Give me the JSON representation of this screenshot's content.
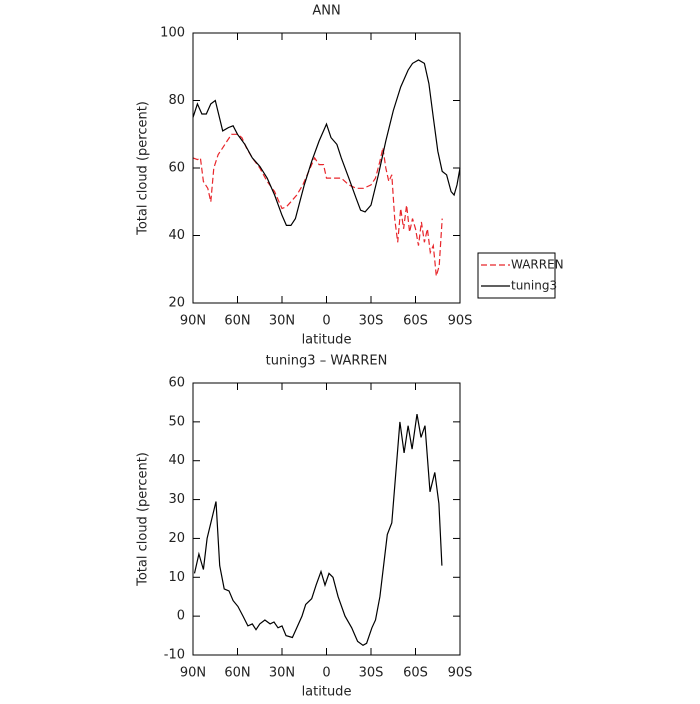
{
  "chart_data": [
    {
      "type": "line",
      "title": "ANN",
      "xlabel": "latitude",
      "ylabel": "Total cloud (percent)",
      "xlim": [
        90,
        -90
      ],
      "ylim": [
        20,
        100
      ],
      "xticks": [
        {
          "value": 90,
          "label": "90N"
        },
        {
          "value": 60,
          "label": "60N"
        },
        {
          "value": 30,
          "label": "30N"
        },
        0,
        {
          "value": -30,
          "label": "30S"
        },
        {
          "value": -60,
          "label": "60S"
        },
        {
          "value": -90,
          "label": "90S"
        }
      ],
      "yticks": [
        20,
        40,
        60,
        80,
        100
      ],
      "legend": "right",
      "series": [
        {
          "name": "WARREN",
          "color": "#e8262b",
          "dashed": true,
          "x": [
            90,
            87,
            85,
            83,
            80,
            78,
            76,
            73,
            70,
            67,
            64,
            60,
            57,
            54,
            50,
            45,
            40,
            35,
            32,
            30,
            27,
            24,
            20,
            16,
            12,
            8,
            5,
            2,
            0,
            -5,
            -10,
            -15,
            -20,
            -25,
            -30,
            -33,
            -36,
            -38,
            -40,
            -42,
            -44,
            -46,
            -48,
            -50,
            -52,
            -54,
            -56,
            -58,
            -60,
            -62,
            -64,
            -66,
            -68,
            -70,
            -72,
            -74,
            -76,
            -78
          ],
          "values": [
            63,
            62.5,
            63,
            56,
            54,
            50,
            60,
            64,
            66,
            68,
            70,
            70,
            69,
            66,
            63,
            60,
            56,
            53,
            50,
            48,
            48.5,
            50,
            52,
            55,
            59,
            63,
            61,
            61,
            57,
            57,
            57,
            55,
            54,
            54,
            55,
            57,
            62,
            66,
            60,
            56,
            58,
            45,
            38,
            48,
            42,
            49,
            41,
            45,
            42,
            37,
            44,
            38,
            42,
            35,
            37,
            28,
            31,
            45
          ]
        },
        {
          "name": "tuning3",
          "color": "#000000",
          "dashed": false,
          "x": [
            90,
            87,
            84,
            81,
            78,
            75,
            70,
            66,
            63,
            60,
            55,
            50,
            45,
            40,
            35,
            30,
            27,
            24,
            21,
            18,
            15,
            10,
            5,
            0,
            -3,
            -7,
            -10,
            -15,
            -20,
            -23,
            -26,
            -30,
            -35,
            -40,
            -45,
            -50,
            -55,
            -58,
            -62,
            -66,
            -69,
            -72,
            -75,
            -78,
            -81,
            -84,
            -86,
            -88,
            -90
          ],
          "values": [
            75,
            79,
            76,
            76,
            79,
            80,
            71,
            72,
            72.5,
            70,
            67,
            63,
            60.5,
            57,
            52,
            46,
            43,
            43,
            45,
            50,
            55,
            62,
            68,
            73,
            69,
            67,
            63,
            57,
            51,
            47.5,
            47,
            49,
            58,
            68,
            77,
            84,
            89,
            91,
            92,
            91,
            85,
            75,
            65,
            59,
            58,
            53,
            52,
            55,
            60
          ]
        }
      ]
    },
    {
      "type": "line",
      "title": "tuning3 – WARREN",
      "xlabel": "latitude",
      "ylabel": "Total cloud (percent)",
      "xlim": [
        90,
        -90
      ],
      "ylim": [
        -10,
        60
      ],
      "xticks": [
        {
          "value": 90,
          "label": "90N"
        },
        {
          "value": 60,
          "label": "60N"
        },
        {
          "value": 30,
          "label": "30N"
        },
        0,
        {
          "value": -30,
          "label": "30S"
        },
        {
          "value": -60,
          "label": "60S"
        },
        {
          "value": -90,
          "label": "90S"
        }
      ],
      "yticks": [
        -10,
        0,
        10,
        20,
        30,
        40,
        50,
        60
      ],
      "series": [
        {
          "color": "#000000",
          "dashed": false,
          "x": [
            89,
            86,
            83,
            80.5,
            74.5,
            72,
            69,
            65.7,
            63,
            59.7,
            56.3,
            53,
            50,
            47.5,
            45,
            41.5,
            38,
            35.4,
            32.7,
            30,
            27.3,
            23,
            20,
            16.5,
            14,
            10,
            7,
            3.7,
            1,
            -1.7,
            -4.4,
            -7.8,
            -12.5,
            -17,
            -21,
            -24.6,
            -27,
            -30.6,
            -33,
            -36,
            -41,
            -44,
            -49.5,
            -52.3,
            -55,
            -57.7,
            -61,
            -63.7,
            -66.4,
            -69.8,
            -73,
            -75.8,
            -77.8
          ],
          "values": [
            11,
            16,
            12,
            20,
            29.5,
            13,
            7,
            6.5,
            4,
            2.5,
            0,
            -2.5,
            -2,
            -3.5,
            -2,
            -1,
            -2,
            -1.5,
            -3,
            -2.5,
            -5,
            -5.5,
            -3,
            0,
            3,
            4.5,
            8,
            11.5,
            8,
            11,
            10,
            5,
            0,
            -3,
            -6.5,
            -7.5,
            -7,
            -3,
            -1,
            5,
            21,
            24,
            50,
            42,
            49,
            43,
            52,
            46,
            49,
            32,
            37,
            29,
            13
          ]
        }
      ]
    }
  ]
}
